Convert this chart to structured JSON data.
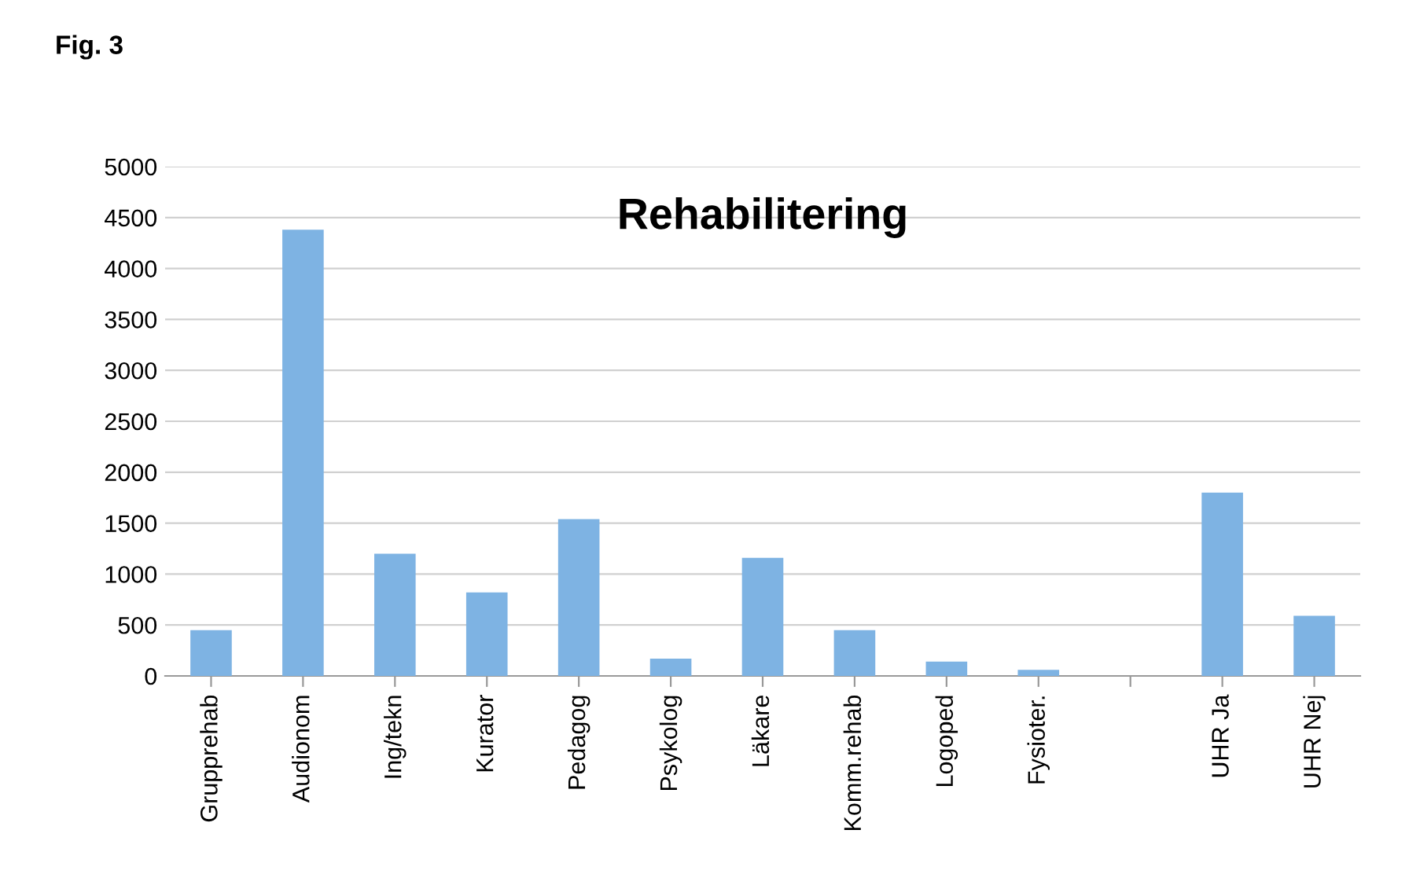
{
  "chart_data": {
    "type": "bar",
    "title": "Rehabilitering",
    "annotations": [
      "Fig. 3"
    ],
    "categories": [
      "Grupprehab",
      "Audionom",
      "Ing/tekn",
      "Kurator",
      "Pedagog",
      "Psykolog",
      "Läkare",
      "Komm.rehab",
      "Logoped",
      "Fysioter.",
      null,
      "UHR Ja",
      "UHR Nej"
    ],
    "values": [
      450,
      4380,
      1200,
      820,
      1540,
      170,
      1160,
      450,
      140,
      60,
      null,
      1800,
      590
    ],
    "color": "#7eb3e3",
    "ylim": [
      0,
      5000
    ],
    "yticks": [
      0,
      500,
      1000,
      1500,
      2000,
      2500,
      3000,
      3500,
      4000,
      4500,
      5000
    ],
    "grid": "y",
    "legend": false
  }
}
